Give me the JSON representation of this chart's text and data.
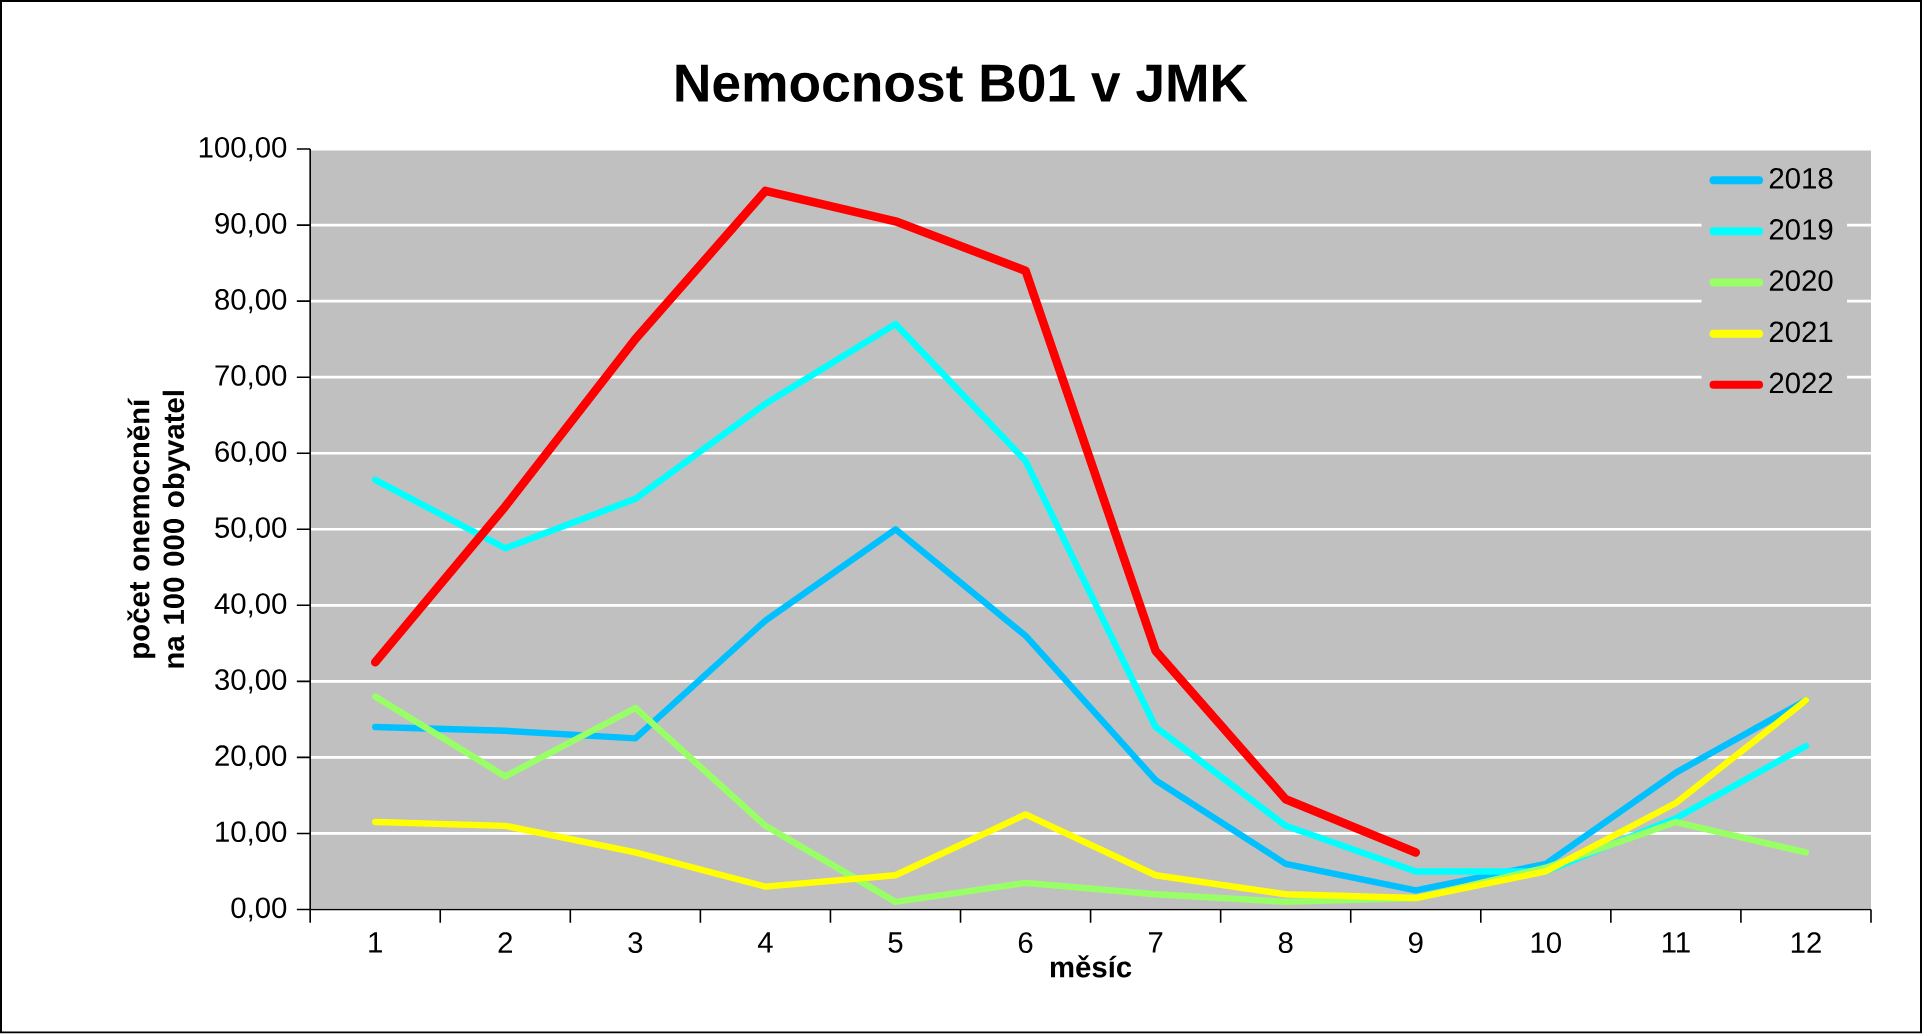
{
  "chart_data": {
    "type": "line",
    "title": "Nemocnost B01 v JMK",
    "xlabel": "měsíc",
    "ylabel": "počet onemocnění na 100 000 obyvatel",
    "categories": [
      "1",
      "2",
      "3",
      "4",
      "5",
      "6",
      "7",
      "8",
      "9",
      "10",
      "11",
      "12"
    ],
    "series": [
      {
        "name": "2018",
        "color": "#00c0ff",
        "values": [
          24,
          23.5,
          22.5,
          38,
          50,
          36,
          17,
          6,
          2.5,
          6,
          18,
          27.5
        ]
      },
      {
        "name": "2019",
        "color": "#00ffff",
        "values": [
          56.5,
          47.5,
          54,
          66.5,
          77,
          59,
          24,
          11,
          5,
          5,
          12,
          21.5
        ]
      },
      {
        "name": "2020",
        "color": "#99ff66",
        "values": [
          28,
          17.5,
          26.5,
          11,
          1,
          3.5,
          2,
          1,
          1.5,
          5.5,
          11.5,
          7.5
        ]
      },
      {
        "name": "2021",
        "color": "#ffff00",
        "values": [
          11.5,
          11,
          7.5,
          3,
          4.5,
          12.5,
          4.5,
          2,
          1.5,
          5,
          14,
          27.5
        ]
      },
      {
        "name": "2022",
        "color": "#ff0000",
        "values": [
          32.5,
          53,
          75,
          94.5,
          90.5,
          84,
          34,
          14.5,
          7.5,
          null,
          null,
          null
        ]
      }
    ],
    "ylim": [
      0,
      100
    ],
    "yticks": [
      {
        "value": 0,
        "label": "0,00"
      },
      {
        "value": 10,
        "label": "10,00"
      },
      {
        "value": 20,
        "label": "20,00"
      },
      {
        "value": 30,
        "label": "30,00"
      },
      {
        "value": 40,
        "label": "40,00"
      },
      {
        "value": 50,
        "label": "50,00"
      },
      {
        "value": 60,
        "label": "60,00"
      },
      {
        "value": 70,
        "label": "70,00"
      },
      {
        "value": 80,
        "label": "80,00"
      },
      {
        "value": 90,
        "label": "90,00"
      },
      {
        "value": 100,
        "label": "100,00"
      }
    ],
    "grid": "y",
    "legend": "top right",
    "marker": "none",
    "line_style": "solid"
  }
}
